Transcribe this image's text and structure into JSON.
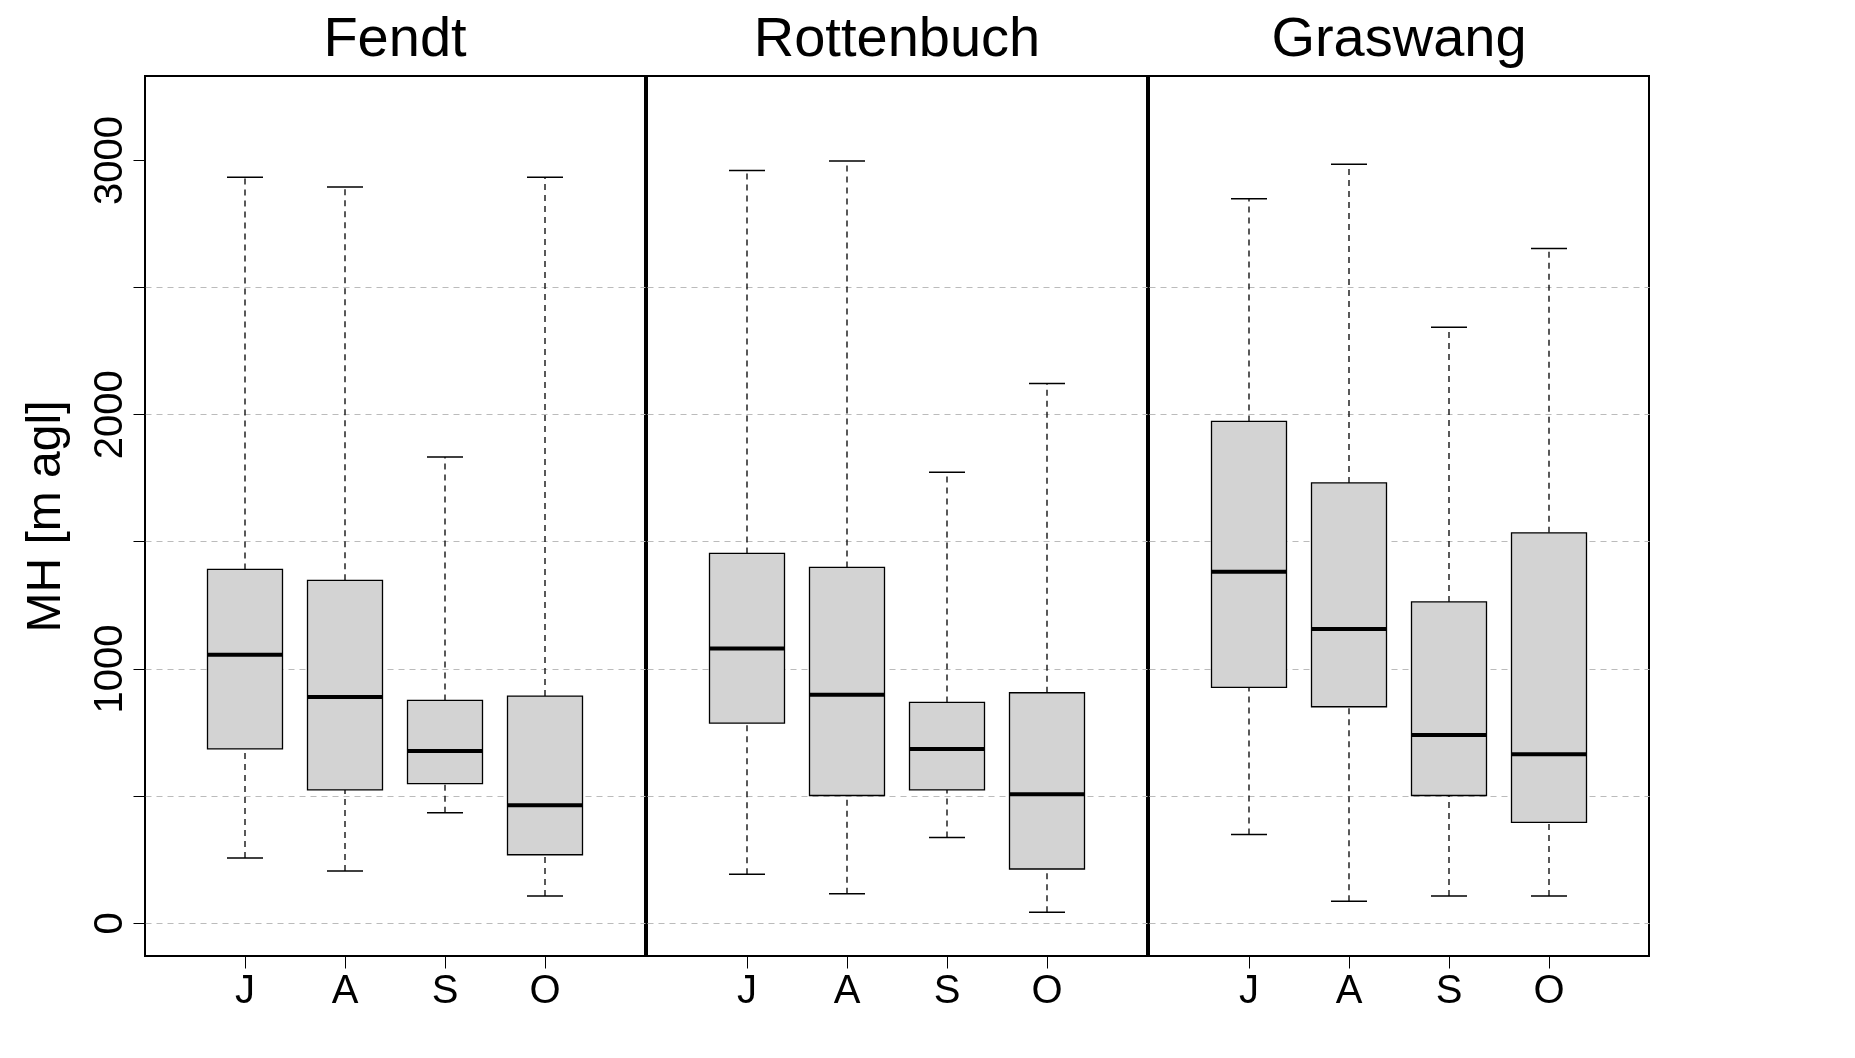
{
  "chart_data": [
    {
      "type": "box",
      "title": "Fendt",
      "ylabel": "MH [m agl]",
      "categories": [
        "J",
        "A",
        "S",
        "O"
      ],
      "ylim": [
        -130,
        3330
      ],
      "yticks": [
        0,
        {
          "value": 500,
          "label": null
        },
        1000,
        {
          "value": 1500,
          "label": null
        },
        2000,
        {
          "value": 2500,
          "label": null
        },
        3000
      ],
      "grid": "y",
      "series": [
        {
          "color": "#d3d3d3",
          "boxes": [
            {
              "low": 255,
              "q1": 684,
              "median": 1054,
              "q3": 1390,
              "high": 2932
            },
            {
              "low": 204,
              "q1": 523,
              "median": 888,
              "q3": 1347,
              "high": 2894
            },
            {
              "low": 433,
              "q1": 548,
              "median": 676,
              "q3": 875,
              "high": 1832
            },
            {
              "low": 106,
              "q1": 268,
              "median": 463,
              "q3": 892,
              "high": 2932
            }
          ]
        }
      ]
    },
    {
      "type": "box",
      "title": "Rottenbuch",
      "categories": [
        "J",
        "A",
        "S",
        "O"
      ],
      "ylim": [
        -130,
        3330
      ],
      "yticks": [
        0,
        {
          "value": 500,
          "label": null
        },
        1000,
        {
          "value": 1500,
          "label": null
        },
        2000,
        {
          "value": 2500,
          "label": null
        },
        3000
      ],
      "grid": "y",
      "tick_labels": "x",
      "series": [
        {
          "color": "#d3d3d3",
          "boxes": [
            {
              "low": 191,
              "q1": 786,
              "median": 1079,
              "q3": 1453,
              "high": 2958
            },
            {
              "low": 115,
              "q1": 501,
              "median": 897,
              "q3": 1398,
              "high": 2996
            },
            {
              "low": 336,
              "q1": 523,
              "median": 684,
              "q3": 867,
              "high": 1772
            },
            {
              "low": 42,
              "q1": 212,
              "median": 506,
              "q3": 905,
              "high": 2121
            }
          ]
        }
      ]
    },
    {
      "type": "box",
      "title": "Graswang",
      "categories": [
        "J",
        "A",
        "S",
        "O"
      ],
      "ylim": [
        -130,
        3330
      ],
      "yticks": [
        0,
        {
          "value": 500,
          "label": null
        },
        1000,
        {
          "value": 1500,
          "label": null
        },
        2000,
        {
          "value": 2500,
          "label": null
        },
        3000
      ],
      "grid": "y",
      "tick_labels": "x",
      "series": [
        {
          "color": "#d3d3d3",
          "boxes": [
            {
              "low": 348,
              "q1": 926,
              "median": 1381,
              "q3": 1972,
              "high": 2847
            },
            {
              "low": 85,
              "q1": 850,
              "median": 1156,
              "q3": 1730,
              "high": 2983
            },
            {
              "low": 106,
              "q1": 501,
              "median": 739,
              "q3": 1262,
              "high": 2342
            },
            {
              "low": 106,
              "q1": 395,
              "median": 663,
              "q3": 1534,
              "high": 2652
            }
          ]
        }
      ]
    }
  ]
}
